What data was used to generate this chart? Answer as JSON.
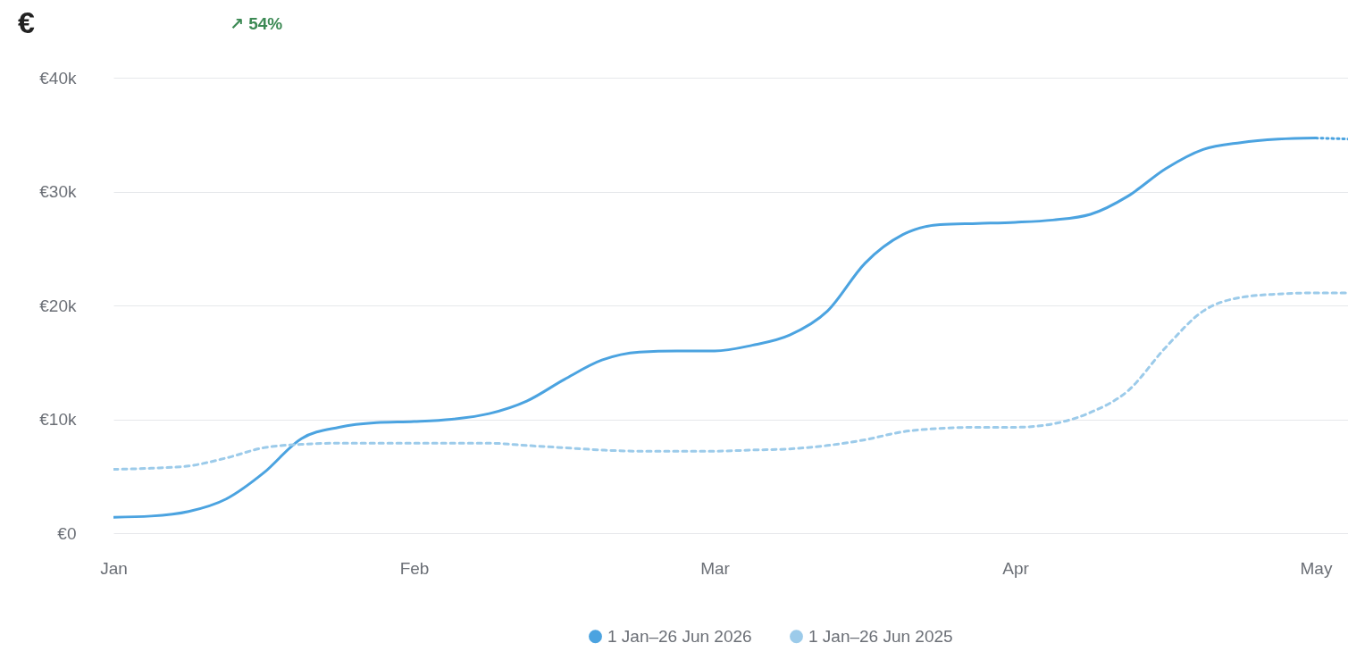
{
  "chart_data": {
    "type": "line",
    "title": "€",
    "annotations": [
      "↗ 54%"
    ],
    "categories": [
      "Jan",
      null,
      null,
      null,
      null,
      null,
      null,
      null,
      "Feb",
      null,
      null,
      null,
      null,
      null,
      null,
      null,
      "Mar",
      null,
      null,
      null,
      null,
      null,
      null,
      null,
      "Apr",
      null,
      null,
      null,
      null,
      null,
      null,
      null,
      "May",
      null
    ],
    "ylim": [
      0,
      40
    ],
    "yticks": [
      {
        "value": 0,
        "label": "€0"
      },
      {
        "value": 10,
        "label": "€10k"
      },
      {
        "value": 20,
        "label": "€20k"
      },
      {
        "value": 30,
        "label": "€30k"
      },
      {
        "value": 40,
        "label": "€40k"
      }
    ],
    "grid": "y",
    "legend": "bottom",
    "marker": "none",
    "series": [
      {
        "name": "1 Jan–26 Jun 2026",
        "color": "#4ba3e0",
        "line_style": "solid",
        "values": [
          1.4,
          1.5,
          1.9,
          3.0,
          5.3,
          8.3,
          9.3,
          9.7,
          9.8,
          10.0,
          10.5,
          11.6,
          13.5,
          15.2,
          15.9,
          16.0,
          16.0,
          16.5,
          17.4,
          19.5,
          23.7,
          26.2,
          27.1,
          27.2,
          27.3,
          27.5,
          28.0,
          29.6,
          32.0,
          33.7,
          34.3,
          34.6,
          34.7,
          null
        ]
      },
      {
        "color": "#4ba3e0",
        "line_style": "dotted",
        "values": [
          null,
          null,
          null,
          null,
          null,
          null,
          null,
          null,
          null,
          null,
          null,
          null,
          null,
          null,
          null,
          null,
          null,
          null,
          null,
          null,
          null,
          null,
          null,
          null,
          null,
          null,
          null,
          null,
          null,
          null,
          null,
          null,
          34.7,
          34.6
        ]
      },
      {
        "name": "1 Jan–26 Jun 2025",
        "color": "#9ccbea",
        "line_style": "dashed",
        "values": [
          5.6,
          5.7,
          5.9,
          6.6,
          7.5,
          7.8,
          7.9,
          7.9,
          7.9,
          7.9,
          7.9,
          7.7,
          7.5,
          7.3,
          7.2,
          7.2,
          7.2,
          7.3,
          7.4,
          7.7,
          8.2,
          8.9,
          9.2,
          9.3,
          9.3,
          9.6,
          10.6,
          12.5,
          16.3,
          19.5,
          20.7,
          21.0,
          21.1,
          21.1
        ]
      }
    ]
  }
}
